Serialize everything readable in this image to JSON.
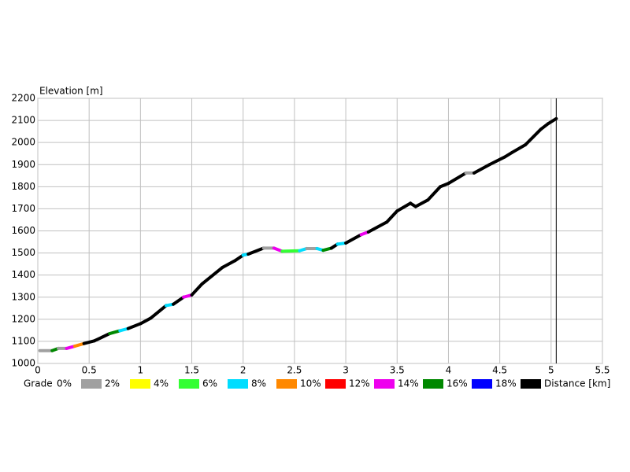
{
  "chart_data": {
    "type": "line",
    "ylabel": "Elevation [m]",
    "xlabel": "Distance [km]",
    "xlim": [
      0,
      5.5
    ],
    "xticks": [
      0,
      0.5,
      1,
      1.5,
      2,
      2.5,
      3,
      3.5,
      4,
      4.5,
      5,
      5.5
    ],
    "ylim": [
      1000,
      2200
    ],
    "yticks": [
      1000,
      1100,
      1200,
      1300,
      1400,
      1500,
      1600,
      1700,
      1800,
      1900,
      2000,
      2100,
      2200
    ],
    "grid": true,
    "x": [
      0.02,
      0.14,
      0.2,
      0.28,
      0.36,
      0.45,
      0.55,
      0.7,
      0.8,
      0.88,
      1.0,
      1.1,
      1.25,
      1.32,
      1.42,
      1.5,
      1.6,
      1.8,
      1.92,
      2.0,
      2.05,
      2.2,
      2.3,
      2.38,
      2.55,
      2.62,
      2.72,
      2.78,
      2.86,
      2.92,
      3.0,
      3.15,
      3.22,
      3.4,
      3.5,
      3.63,
      3.68,
      3.8,
      3.92,
      4.0,
      4.17,
      4.25,
      4.4,
      4.55,
      4.62,
      4.75,
      4.9,
      4.97,
      5.05
    ],
    "values": [
      1058,
      1058,
      1068,
      1068,
      1078,
      1090,
      1102,
      1135,
      1148,
      1158,
      1180,
      1205,
      1262,
      1268,
      1300,
      1310,
      1360,
      1435,
      1465,
      1490,
      1495,
      1522,
      1522,
      1508,
      1510,
      1520,
      1520,
      1512,
      1522,
      1540,
      1545,
      1583,
      1595,
      1640,
      1690,
      1725,
      1710,
      1740,
      1800,
      1815,
      1862,
      1862,
      1900,
      1935,
      1955,
      1990,
      2060,
      2085,
      2108
    ],
    "segment_colors": [
      "#a0a0a0",
      "#008800",
      "#a0a0a0",
      "#ee00ee",
      "#ff8800",
      "#000000",
      "#000000",
      "#008800",
      "#00ddff",
      "#000000",
      "#000000",
      "#000000",
      "#00ddff",
      "#000000",
      "#ee00ee",
      "#000000",
      "#000000",
      "#000000",
      "#000000",
      "#00ddff",
      "#000000",
      "#a0a0a0",
      "#ee00ee",
      "#33ff33",
      "#00ddff",
      "#a0a0a0",
      "#00ddff",
      "#008800",
      "#000000",
      "#00ddff",
      "#000000",
      "#ee00ee",
      "#000000",
      "#000000",
      "#000000",
      "#000000",
      "#000000",
      "#000000",
      "#000000",
      "#000000",
      "#a0a0a0",
      "#000000",
      "#000000",
      "#000000",
      "#000000",
      "#000000",
      "#000000",
      "#000000"
    ],
    "cursor_x": 5.05,
    "legend": {
      "title": "Grade",
      "labels": [
        "0%",
        "2%",
        "4%",
        "6%",
        "8%",
        "10%",
        "12%",
        "14%",
        "16%",
        "18%"
      ],
      "colors": [
        "#a0a0a0",
        "#ffff00",
        "#33ff33",
        "#00ddff",
        "#ff8800",
        "#ff0000",
        "#ee00ee",
        "#008800",
        "#0000ff",
        "#000000"
      ]
    }
  }
}
